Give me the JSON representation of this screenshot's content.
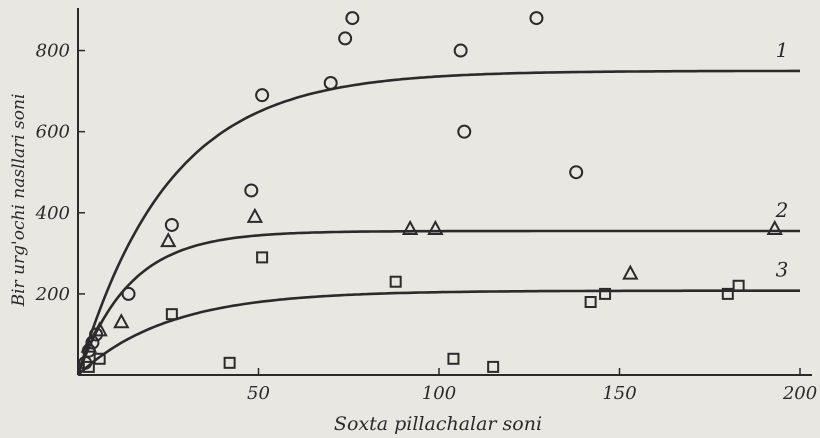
{
  "chart_data": {
    "type": "scatter",
    "title": "",
    "xlabel": "Soxta pillachalar soni",
    "ylabel": "Bir urg'ochi nasllari soni",
    "xlim": [
      0,
      200
    ],
    "ylim": [
      0,
      900
    ],
    "x_ticks": [
      50,
      100,
      150,
      200
    ],
    "x_tick_labels": [
      "50",
      "100",
      "150",
      "200"
    ],
    "y_ticks": [
      200,
      400,
      600,
      800
    ],
    "y_tick_labels": [
      "200",
      "400",
      "600",
      "800"
    ],
    "grid": false,
    "legend": "none",
    "curves": [
      {
        "label": "1",
        "asymptote": 750,
        "rate": 0.04,
        "marker": "circle"
      },
      {
        "label": "2",
        "asymptote": 355,
        "rate": 0.07,
        "marker": "triangle"
      },
      {
        "label": "3",
        "asymptote": 208,
        "rate": 0.04,
        "marker": "square"
      }
    ],
    "series": [
      {
        "marker": "circle",
        "points": [
          [
            2,
            30
          ],
          [
            3,
            60
          ],
          [
            4,
            80
          ],
          [
            5,
            100
          ],
          [
            14,
            200
          ],
          [
            26,
            370
          ],
          [
            48,
            455
          ],
          [
            51,
            690
          ],
          [
            70,
            720
          ],
          [
            74,
            830
          ],
          [
            76,
            880
          ],
          [
            106,
            800
          ],
          [
            107,
            600
          ],
          [
            127,
            880
          ],
          [
            138,
            500
          ]
        ]
      },
      {
        "marker": "triangle",
        "points": [
          [
            3,
            70
          ],
          [
            6,
            110
          ],
          [
            12,
            130
          ],
          [
            25,
            330
          ],
          [
            49,
            390
          ],
          [
            92,
            360
          ],
          [
            99,
            360
          ],
          [
            153,
            250
          ],
          [
            193,
            360
          ]
        ]
      },
      {
        "marker": "square",
        "points": [
          [
            3,
            20
          ],
          [
            6,
            40
          ],
          [
            26,
            150
          ],
          [
            42,
            30
          ],
          [
            51,
            290
          ],
          [
            88,
            230
          ],
          [
            104,
            40
          ],
          [
            115,
            20
          ],
          [
            142,
            180
          ],
          [
            146,
            200
          ],
          [
            180,
            200
          ],
          [
            183,
            220
          ]
        ]
      }
    ]
  }
}
